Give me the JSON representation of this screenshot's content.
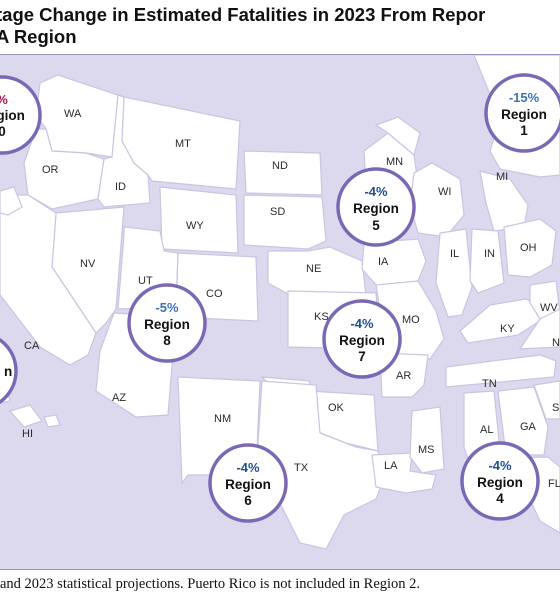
{
  "title": {
    "line1": "tage Change in Estimated Fatalities in 2023 From Repor",
    "line2": "A Region"
  },
  "states": [
    {
      "id": "WA",
      "label": "WA"
    },
    {
      "id": "OR",
      "label": "OR"
    },
    {
      "id": "ID",
      "label": "ID"
    },
    {
      "id": "MT",
      "label": "MT"
    },
    {
      "id": "WY",
      "label": "WY"
    },
    {
      "id": "ND",
      "label": "ND"
    },
    {
      "id": "SD",
      "label": "SD"
    },
    {
      "id": "NE",
      "label": "NE"
    },
    {
      "id": "KS",
      "label": "KS"
    },
    {
      "id": "CO",
      "label": "CO"
    },
    {
      "id": "UT",
      "label": "UT"
    },
    {
      "id": "NV",
      "label": "NV"
    },
    {
      "id": "CA",
      "label": "CA"
    },
    {
      "id": "AZ",
      "label": "AZ"
    },
    {
      "id": "NM",
      "label": "NM"
    },
    {
      "id": "TX",
      "label": "TX"
    },
    {
      "id": "OK",
      "label": "OK"
    },
    {
      "id": "MN",
      "label": "MN"
    },
    {
      "id": "IA",
      "label": "IA"
    },
    {
      "id": "MO",
      "label": "MO"
    },
    {
      "id": "AR",
      "label": "AR"
    },
    {
      "id": "LA",
      "label": "LA"
    },
    {
      "id": "MS",
      "label": "MS"
    },
    {
      "id": "WI",
      "label": "WI"
    },
    {
      "id": "IL",
      "label": "IL"
    },
    {
      "id": "MI",
      "label": "MI"
    },
    {
      "id": "IN",
      "label": "IN"
    },
    {
      "id": "OH",
      "label": "OH"
    },
    {
      "id": "KY",
      "label": "KY"
    },
    {
      "id": "TN",
      "label": "TN"
    },
    {
      "id": "AL",
      "label": "AL"
    },
    {
      "id": "GA",
      "label": "GA"
    },
    {
      "id": "WV",
      "label": "WV"
    },
    {
      "id": "N",
      "label": "N"
    },
    {
      "id": "S",
      "label": "S"
    },
    {
      "id": "FL",
      "label": "FL"
    },
    {
      "id": "HI",
      "label": "HI"
    }
  ],
  "regions": [
    {
      "id": "r10",
      "pct": "%",
      "name": "Region",
      "num": "0",
      "pct_color": "#b0124a"
    },
    {
      "id": "r1",
      "pct": "-15%",
      "name": "Region",
      "num": "1",
      "pct_color": "#3a73b8"
    },
    {
      "id": "r5",
      "pct": "-4%",
      "name": "Region",
      "num": "5",
      "pct_color": "#1f4f8f"
    },
    {
      "id": "r8",
      "pct": "-5%",
      "name": "Region",
      "num": "8",
      "pct_color": "#3a73b8"
    },
    {
      "id": "r7",
      "pct": "-4%",
      "name": "Region",
      "num": "7",
      "pct_color": "#1f4f8f"
    },
    {
      "id": "r9",
      "pct": "",
      "name": "n",
      "num": "",
      "pct_color": "#1f4f8f"
    },
    {
      "id": "r6",
      "pct": "-4%",
      "name": "Region",
      "num": "6",
      "pct_color": "#1f4f8f"
    },
    {
      "id": "r4",
      "pct": "-4%",
      "name": "Region",
      "num": "4",
      "pct_color": "#1f4f8f"
    }
  ],
  "footnote": " and 2023 statistical projections. Puerto Rico is not included in Region 2."
}
